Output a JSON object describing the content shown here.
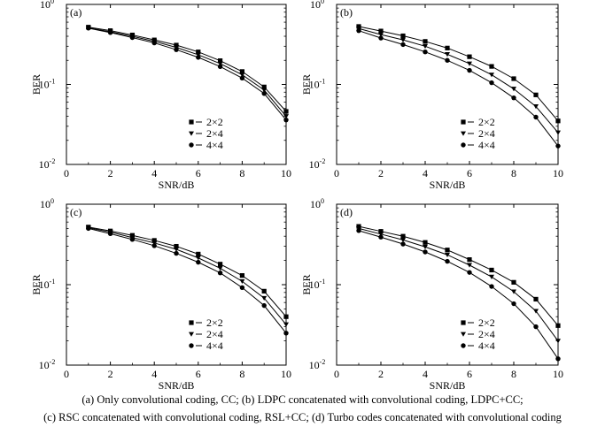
{
  "chart_data": [
    {
      "type": "line",
      "panel_label": "(a)",
      "xlabel": "SNR/dB",
      "ylabel": "BER",
      "xlim": [
        0,
        10
      ],
      "ylim": [
        0.01,
        1
      ],
      "yscale": "log",
      "x_ticks": [
        0,
        2,
        4,
        6,
        8,
        10
      ],
      "legend_position": "lower-right",
      "x": [
        1,
        2,
        3,
        4,
        5,
        6,
        7,
        8,
        9,
        10
      ],
      "series": [
        {
          "name": "2×2",
          "marker": "square",
          "values": [
            0.52,
            0.47,
            0.415,
            0.36,
            0.31,
            0.255,
            0.198,
            0.145,
            0.093,
            0.046
          ]
        },
        {
          "name": "2×4",
          "marker": "triangle",
          "values": [
            0.51,
            0.455,
            0.4,
            0.345,
            0.29,
            0.235,
            0.182,
            0.132,
            0.085,
            0.04
          ]
        },
        {
          "name": "4×4",
          "marker": "circle",
          "values": [
            0.505,
            0.445,
            0.385,
            0.33,
            0.272,
            0.218,
            0.167,
            0.12,
            0.077,
            0.036
          ]
        }
      ]
    },
    {
      "type": "line",
      "panel_label": "(b)",
      "xlabel": "SNR/dB",
      "ylabel": "BER",
      "xlim": [
        0,
        10
      ],
      "ylim": [
        0.01,
        1
      ],
      "yscale": "log",
      "x_ticks": [
        0,
        2,
        4,
        6,
        8,
        10
      ],
      "legend_position": "lower-right",
      "x": [
        1,
        2,
        3,
        4,
        5,
        6,
        7,
        8,
        9,
        10
      ],
      "series": [
        {
          "name": "2×2",
          "marker": "square",
          "values": [
            0.53,
            0.465,
            0.405,
            0.345,
            0.285,
            0.222,
            0.168,
            0.118,
            0.074,
            0.035
          ]
        },
        {
          "name": "2×4",
          "marker": "triangle",
          "values": [
            0.5,
            0.42,
            0.36,
            0.3,
            0.238,
            0.182,
            0.132,
            0.088,
            0.053,
            0.025
          ]
        },
        {
          "name": "4×4",
          "marker": "circle",
          "values": [
            0.47,
            0.38,
            0.315,
            0.255,
            0.2,
            0.15,
            0.105,
            0.068,
            0.039,
            0.017
          ]
        }
      ]
    },
    {
      "type": "line",
      "panel_label": "(c)",
      "xlabel": "SNR/dB",
      "ylabel": "BER",
      "xlim": [
        0,
        10
      ],
      "ylim": [
        0.01,
        1
      ],
      "yscale": "log",
      "x_ticks": [
        0,
        2,
        4,
        6,
        8,
        10
      ],
      "legend_position": "lower-right",
      "x": [
        1,
        2,
        3,
        4,
        5,
        6,
        7,
        8,
        9,
        10
      ],
      "series": [
        {
          "name": "2×2",
          "marker": "square",
          "values": [
            0.52,
            0.465,
            0.41,
            0.355,
            0.3,
            0.24,
            0.18,
            0.13,
            0.083,
            0.04
          ]
        },
        {
          "name": "2×4",
          "marker": "triangle",
          "values": [
            0.51,
            0.45,
            0.385,
            0.33,
            0.275,
            0.215,
            0.16,
            0.11,
            0.068,
            0.032
          ]
        },
        {
          "name": "4×4",
          "marker": "circle",
          "values": [
            0.5,
            0.43,
            0.365,
            0.305,
            0.245,
            0.19,
            0.14,
            0.092,
            0.055,
            0.025
          ]
        }
      ]
    },
    {
      "type": "line",
      "panel_label": "(d)",
      "xlabel": "SNR/dB",
      "ylabel": "BER",
      "xlim": [
        0,
        10
      ],
      "ylim": [
        0.01,
        1
      ],
      "yscale": "log",
      "x_ticks": [
        0,
        2,
        4,
        6,
        8,
        10
      ],
      "legend_position": "lower-right",
      "x": [
        1,
        2,
        3,
        4,
        5,
        6,
        7,
        8,
        9,
        10
      ],
      "series": [
        {
          "name": "2×2",
          "marker": "square",
          "values": [
            0.53,
            0.46,
            0.4,
            0.335,
            0.27,
            0.205,
            0.152,
            0.107,
            0.066,
            0.031
          ]
        },
        {
          "name": "2×4",
          "marker": "triangle",
          "values": [
            0.5,
            0.425,
            0.36,
            0.295,
            0.235,
            0.175,
            0.125,
            0.082,
            0.047,
            0.02
          ]
        },
        {
          "name": "4×4",
          "marker": "circle",
          "values": [
            0.47,
            0.39,
            0.32,
            0.255,
            0.195,
            0.142,
            0.095,
            0.058,
            0.03,
            0.012
          ]
        }
      ]
    }
  ],
  "captions": {
    "line1": "(a)  Only convolutional coding, CC; (b) LDPC concatenated with convolutional coding, LDPC+CC;",
    "line2": "(c) RSC concatenated with convolutional coding, RSL+CC; (d) Turbo codes concatenated with convolutional coding"
  }
}
